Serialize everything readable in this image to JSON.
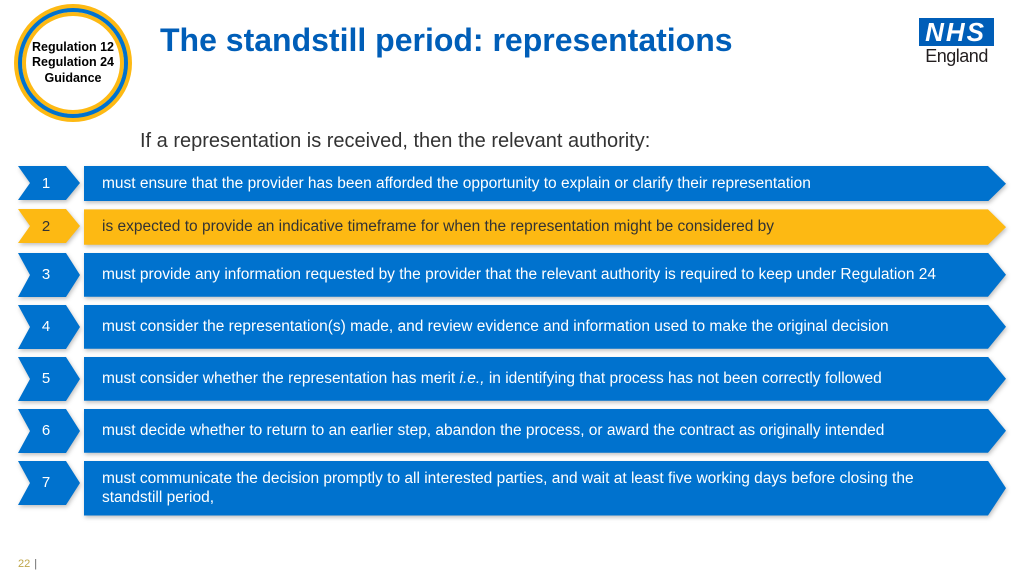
{
  "badge": {
    "line1": "Regulation 12",
    "line2": "Regulation 24",
    "line3": "Guidance"
  },
  "logo": {
    "box": "NHS",
    "sub": "England"
  },
  "title": "The standstill period: representations",
  "subtitle": "If a representation is received, then the relevant authority:",
  "colors": {
    "primary": "#005eb8",
    "bar_blue": "#0072ce",
    "bar_yellow": "#fdb913",
    "text_on_yellow": "#333333",
    "text_on_blue": "#ffffff"
  },
  "items": [
    {
      "n": "1",
      "text": "must ensure that the provider has been afforded the opportunity to explain or clarify their representation",
      "bg": "#0072ce",
      "fg": "#ffffff",
      "lines": 1
    },
    {
      "n": "2",
      "text": "is expected to provide an indicative timeframe for when the representation might be considered by",
      "bg": "#fdb913",
      "fg": "#333333",
      "lines": 1
    },
    {
      "n": "3",
      "text": "must provide any information requested by the provider that the relevant authority is required to keep under Regulation 24",
      "bg": "#0072ce",
      "fg": "#ffffff",
      "lines": 2
    },
    {
      "n": "4",
      "text": "must consider the representation(s) made, and review evidence and information used to make the original decision",
      "bg": "#0072ce",
      "fg": "#ffffff",
      "lines": 2
    },
    {
      "n": "5",
      "text": "must consider whether the representation has merit i.e., in identifying that process has not been correctly followed",
      "bg": "#0072ce",
      "fg": "#ffffff",
      "lines": 2,
      "italic_phrase": "i.e.,"
    },
    {
      "n": "6",
      "text": "must decide whether to return to an earlier step, abandon the process, or award the contract as originally intended",
      "bg": "#0072ce",
      "fg": "#ffffff",
      "lines": 2
    },
    {
      "n": "7",
      "text": "must communicate the decision promptly to all interested parties, and wait at least five working days before closing the standstill period,",
      "bg": "#0072ce",
      "fg": "#ffffff",
      "lines": 2
    }
  ],
  "page_number": "22"
}
